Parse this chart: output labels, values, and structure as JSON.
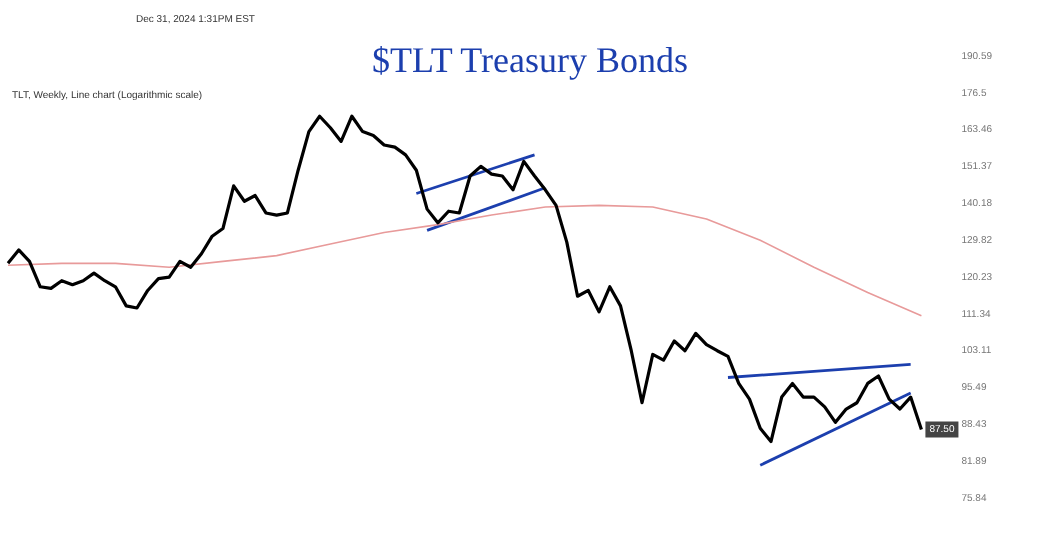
{
  "chart_data": {
    "type": "line",
    "title": "$TLT Treasury Bonds",
    "subtitle": "TLT, Weekly, Line chart (Logarithmic scale)",
    "annotations": [
      "Dec 31, 2024 1:31PM EST",
      {
        "text": "87.50",
        "y": 87.5
      }
    ],
    "categories": [
      null,
      null,
      null,
      null,
      null,
      null,
      null,
      null,
      null,
      null,
      null,
      null,
      null,
      null,
      null,
      null,
      null,
      null,
      null,
      null,
      null,
      null,
      null,
      null,
      null,
      null,
      null,
      null,
      null,
      null,
      null,
      null,
      null,
      null,
      null,
      null,
      null,
      null,
      null,
      null,
      null,
      null,
      null,
      null,
      null,
      null,
      null,
      null,
      null,
      null,
      null,
      null,
      null,
      null,
      null,
      null,
      null,
      null,
      null,
      null,
      null,
      null,
      null,
      null,
      null,
      null,
      null,
      null,
      null,
      null,
      null,
      null,
      null,
      null,
      null,
      null,
      null,
      null,
      null,
      null,
      null,
      null,
      null,
      null,
      null,
      null
    ],
    "series": [
      {
        "color": "#000000",
        "values": [
          123.7,
          127.2,
          124.2,
          117.8,
          117.4,
          119.3,
          118.3,
          119.3,
          121.2,
          119.3,
          117.8,
          113.2,
          112.7,
          116.9,
          119.8,
          120.2,
          124.2,
          122.7,
          126.2,
          130.9,
          133.0,
          145.4,
          140.8,
          142.5,
          137.4,
          136.8,
          137.4,
          150.2,
          162.8,
          168.1,
          164.1,
          159.5,
          168.1,
          162.8,
          161.5,
          158.3,
          157.6,
          155.1,
          150.2,
          138.5,
          134.6,
          137.9,
          137.4,
          148.4,
          151.4,
          149.0,
          148.4,
          144.2,
          153.0,
          148.4,
          144.2,
          139.6,
          129.3,
          115.5,
          116.9,
          111.8,
          117.8,
          113.2,
          103.1,
          92.5,
          102.3,
          101.1,
          105.2,
          103.1,
          106.9,
          104.4,
          103.1,
          101.9,
          96.3,
          93.2,
          87.7,
          85.3,
          93.6,
          96.3,
          93.6,
          93.6,
          91.7,
          88.8,
          91.3,
          92.5,
          96.3,
          97.8,
          93.2,
          91.3,
          93.6,
          87.5
        ]
      },
      {
        "color": "#e89a9a",
        "values": [
          123.2,
          null,
          null,
          null,
          null,
          123.7,
          null,
          null,
          null,
          null,
          123.7,
          null,
          null,
          null,
          null,
          122.7,
          null,
          null,
          null,
          null,
          124.2,
          null,
          null,
          null,
          null,
          125.7,
          null,
          null,
          null,
          null,
          128.8,
          null,
          null,
          null,
          null,
          131.9,
          null,
          null,
          null,
          null,
          134.1,
          null,
          null,
          null,
          null,
          136.8,
          null,
          null,
          null,
          null,
          139.1,
          null,
          null,
          null,
          null,
          139.6,
          null,
          null,
          null,
          null,
          139.1,
          null,
          null,
          null,
          null,
          135.7,
          null,
          null,
          null,
          null,
          129.8,
          null,
          null,
          null,
          null,
          122.7,
          null,
          null,
          null,
          null,
          116.4,
          null,
          null,
          null,
          null,
          110.9
        ]
      },
      {
        "color": "#1c3fae",
        "values": [
          null,
          null,
          null,
          null,
          null,
          null,
          null,
          null,
          null,
          null,
          null,
          null,
          null,
          null,
          null,
          null,
          null,
          null,
          null,
          null,
          null,
          null,
          null,
          null,
          null,
          null,
          null,
          null,
          null,
          null,
          null,
          null,
          null,
          null,
          null,
          null,
          null,
          null,
          143.1,
          null,
          null,
          null,
          null,
          null,
          null,
          null,
          null,
          null,
          null,
          155.1,
          null,
          null,
          null,
          null,
          null,
          null,
          null,
          null,
          null,
          null,
          null,
          null,
          null,
          null,
          null,
          null,
          null,
          null,
          null,
          null,
          null,
          null,
          null,
          null,
          null,
          null,
          null,
          null,
          null,
          null,
          null,
          null,
          null,
          null,
          null,
          null
        ]
      },
      {
        "color": "#1c3fae",
        "values": [
          null,
          null,
          null,
          null,
          null,
          null,
          null,
          null,
          null,
          null,
          null,
          null,
          null,
          null,
          null,
          null,
          null,
          null,
          null,
          null,
          null,
          null,
          null,
          null,
          null,
          null,
          null,
          null,
          null,
          null,
          null,
          null,
          null,
          null,
          null,
          null,
          null,
          null,
          null,
          132.5,
          null,
          null,
          null,
          null,
          null,
          null,
          null,
          null,
          null,
          null,
          144.8,
          null,
          null,
          null,
          null,
          null,
          null,
          null,
          null,
          null,
          null,
          null,
          null,
          null,
          null,
          null,
          null,
          null,
          null,
          null,
          null,
          null,
          null,
          null,
          null,
          null,
          null,
          null,
          null,
          null,
          null,
          null,
          null,
          null,
          null,
          null
        ]
      },
      {
        "color": "#1c3fae",
        "values": [
          null,
          null,
          null,
          null,
          null,
          null,
          null,
          null,
          null,
          null,
          null,
          null,
          null,
          null,
          null,
          null,
          null,
          null,
          null,
          null,
          null,
          null,
          null,
          null,
          null,
          null,
          null,
          null,
          null,
          null,
          null,
          null,
          null,
          null,
          null,
          null,
          null,
          null,
          null,
          null,
          null,
          null,
          null,
          null,
          null,
          null,
          null,
          null,
          null,
          null,
          null,
          null,
          null,
          null,
          null,
          null,
          null,
          null,
          null,
          null,
          null,
          null,
          null,
          null,
          null,
          null,
          null,
          97.5,
          null,
          null,
          null,
          null,
          null,
          null,
          null,
          null,
          null,
          null,
          null,
          null,
          null,
          null,
          null,
          null,
          100.2,
          null
        ]
      },
      {
        "color": "#1c3fae",
        "values": [
          null,
          null,
          null,
          null,
          null,
          null,
          null,
          null,
          null,
          null,
          null,
          null,
          null,
          null,
          null,
          null,
          null,
          null,
          null,
          null,
          null,
          null,
          null,
          null,
          null,
          null,
          null,
          null,
          null,
          null,
          null,
          null,
          null,
          null,
          null,
          null,
          null,
          null,
          null,
          null,
          null,
          null,
          null,
          null,
          null,
          null,
          null,
          null,
          null,
          null,
          null,
          null,
          null,
          null,
          null,
          null,
          null,
          null,
          null,
          null,
          null,
          null,
          null,
          null,
          null,
          null,
          null,
          null,
          null,
          null,
          81.2,
          null,
          null,
          null,
          null,
          null,
          null,
          null,
          null,
          null,
          null,
          null,
          null,
          null,
          94.4,
          null
        ]
      }
    ],
    "ylim": [
      75.84,
      190.59
    ],
    "yticks": [
      75.84,
      81.89,
      88.43,
      95.49,
      103.11,
      111.34,
      120.23,
      129.82,
      140.18,
      151.37,
      163.46,
      176.5,
      190.59
    ],
    "log": "y",
    "grid": false,
    "legend": false,
    "tick_labels": "y",
    "marker": "none",
    "line_style": "solid"
  }
}
